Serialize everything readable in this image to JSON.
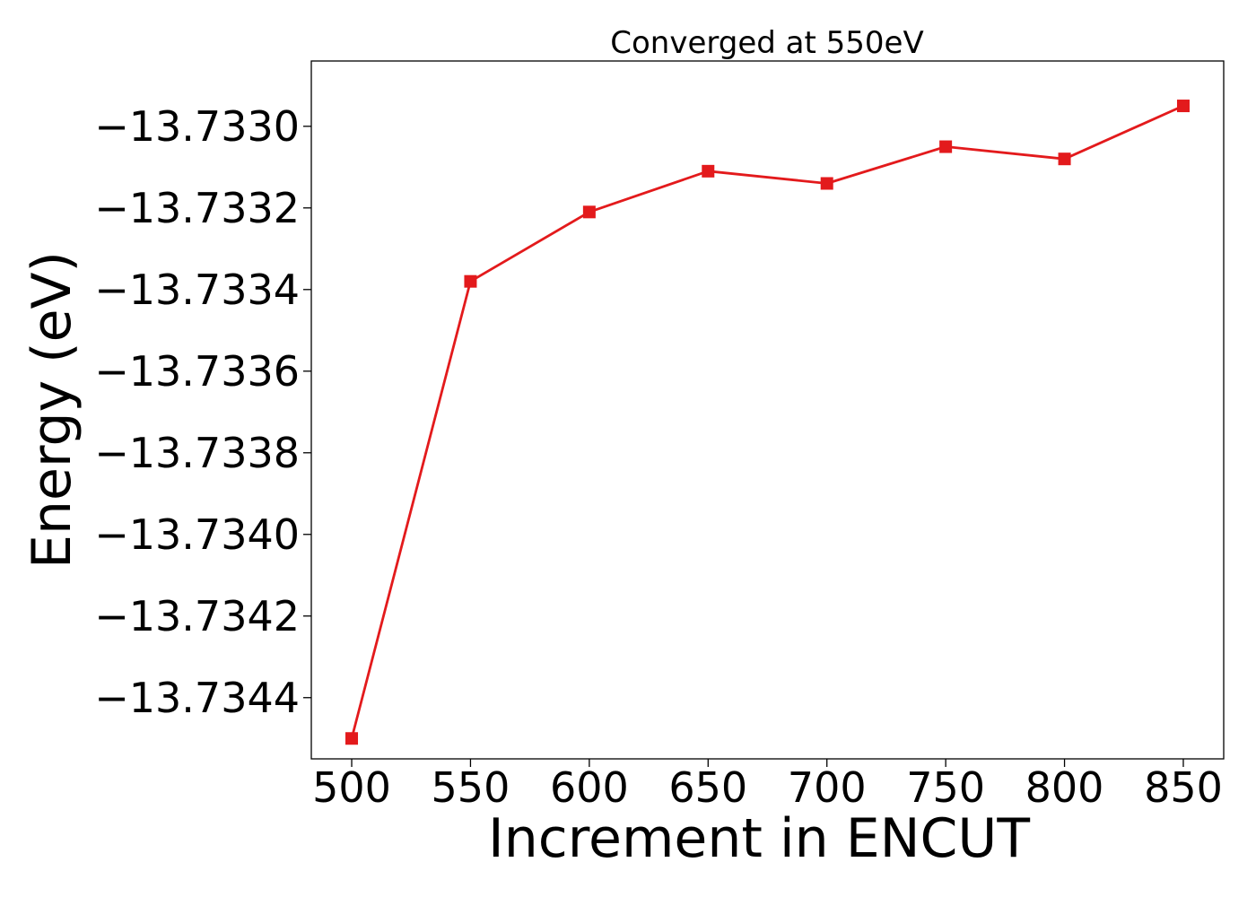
{
  "chart_data": {
    "type": "line",
    "title": "Converged at 550eV",
    "xlabel": "Increment in ENCUT",
    "ylabel": "Energy (eV)",
    "x": [
      500,
      550,
      600,
      650,
      700,
      750,
      800,
      850
    ],
    "series": [
      {
        "values": [
          -13.7345,
          -13.73338,
          -13.73321,
          -13.73311,
          -13.73314,
          -13.73305,
          -13.73308,
          -13.73295
        ],
        "color": "#e31a1c",
        "marker": "square"
      }
    ],
    "xticks": [
      500,
      550,
      600,
      650,
      700,
      750,
      800,
      850
    ],
    "xtick_labels": [
      "500",
      "550",
      "600",
      "650",
      "700",
      "750",
      "800",
      "850"
    ],
    "yticks": [
      -13.733,
      -13.7332,
      -13.7334,
      -13.7336,
      -13.7338,
      -13.734,
      -13.7342,
      -13.7344
    ],
    "ytick_labels": [
      "−13.7330",
      "−13.7332",
      "−13.7334",
      "−13.7336",
      "−13.7338",
      "−13.7340",
      "−13.7342",
      "−13.7344"
    ],
    "xlim": [
      483,
      867
    ],
    "ylim": [
      -13.73455,
      -13.73284
    ],
    "grid": false,
    "legend": "none"
  }
}
